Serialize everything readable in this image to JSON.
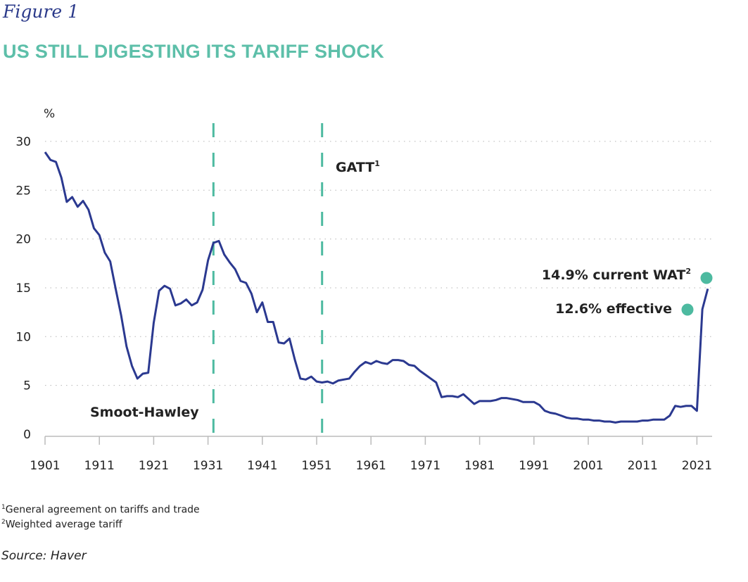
{
  "figure_label": "Figure 1",
  "chart_data": {
    "type": "line",
    "title": "US STILL DIGESTING ITS TARIFF SHOCK",
    "ylabel": "%",
    "xlabel": "",
    "ylim": [
      0,
      30
    ],
    "yticks": [
      "0",
      "5",
      "10",
      "15",
      "20",
      "25",
      "30"
    ],
    "xticks": [
      "1901",
      "1911",
      "1921",
      "1931",
      "1941",
      "1951",
      "1961",
      "1971",
      "1981",
      "1991",
      "2001",
      "2011",
      "2021"
    ],
    "grid": "horizontal dotted",
    "line_color": "#2b3990",
    "accent_color": "#4dbaa0",
    "series": [
      {
        "x": [
          1901,
          1902,
          1903,
          1904,
          1905,
          1906,
          1907,
          1908,
          1909,
          1910,
          1911,
          1912,
          1913,
          1914,
          1915,
          1916,
          1917,
          1918,
          1919,
          1920,
          1921,
          1922,
          1923,
          1924,
          1925,
          1926,
          1927,
          1928,
          1929,
          1930,
          1931,
          1932,
          1933,
          1934,
          1935,
          1936,
          1937,
          1938,
          1939,
          1940,
          1941,
          1942,
          1943,
          1944,
          1945,
          1946,
          1947,
          1948,
          1949,
          1950,
          1951,
          1952,
          1953,
          1954,
          1955,
          1956,
          1957,
          1958,
          1959,
          1960,
          1961,
          1962,
          1963,
          1964,
          1965,
          1966,
          1967,
          1968,
          1969,
          1970,
          1971,
          1972,
          1973,
          1974,
          1975,
          1976,
          1977,
          1978,
          1979,
          1980,
          1981,
          1982,
          1983,
          1984,
          1985,
          1986,
          1987,
          1988,
          1989,
          1990,
          1991,
          1992,
          1993,
          1994,
          1995,
          1996,
          1997,
          1998,
          1999,
          2000,
          2001,
          2002,
          2003,
          2004,
          2005,
          2006,
          2007,
          2008,
          2009,
          2010,
          2011,
          2012,
          2013,
          2014,
          2015,
          2016,
          2017,
          2018,
          2019,
          2020,
          2021,
          2022,
          2023
        ],
        "values": [
          28.9,
          28.1,
          27.9,
          26.3,
          23.8,
          24.3,
          23.3,
          23.9,
          23.0,
          21.1,
          20.4,
          18.6,
          17.7,
          14.9,
          12.2,
          9.0,
          7.0,
          5.7,
          6.2,
          6.3,
          11.4,
          14.7,
          15.2,
          14.9,
          13.2,
          13.4,
          13.8,
          13.2,
          13.5,
          14.8,
          17.8,
          19.6,
          19.8,
          18.4,
          17.6,
          16.9,
          15.7,
          15.5,
          14.4,
          12.5,
          13.5,
          11.5,
          11.5,
          9.4,
          9.3,
          9.8,
          7.6,
          5.7,
          5.6,
          5.9,
          5.4,
          5.3,
          5.4,
          5.2,
          5.5,
          5.6,
          5.7,
          6.4,
          7.0,
          7.4,
          7.2,
          7.5,
          7.3,
          7.2,
          7.6,
          7.6,
          7.5,
          7.1,
          7.0,
          6.5,
          6.1,
          5.7,
          5.3,
          3.8,
          3.9,
          3.9,
          3.8,
          4.1,
          3.6,
          3.1,
          3.4,
          3.4,
          3.4,
          3.5,
          3.7,
          3.7,
          3.6,
          3.5,
          3.3,
          3.3,
          3.3,
          3.0,
          2.4,
          2.2,
          2.1,
          1.9,
          1.7,
          1.6,
          1.6,
          1.5,
          1.5,
          1.4,
          1.4,
          1.3,
          1.3,
          1.2,
          1.3,
          1.3,
          1.3,
          1.3,
          1.4,
          1.4,
          1.5,
          1.5,
          1.5,
          1.9,
          2.9,
          2.8,
          2.9,
          2.9,
          2.4,
          12.8,
          14.9
        ]
      }
    ],
    "vlines": [
      {
        "x": 1932,
        "label": "Smoot-Hawley"
      },
      {
        "x": 1952,
        "label": "GATT",
        "sup": "1"
      }
    ],
    "annotations": [
      {
        "text": "14.9% current WAT",
        "sup": "2",
        "marker": "dot"
      },
      {
        "text": "12.6% effective",
        "marker": "dot"
      }
    ]
  },
  "footnotes": [
    {
      "sup": "1",
      "text": "General agreement on tariffs and trade"
    },
    {
      "sup": "2",
      "text": "Weighted average tariff"
    }
  ],
  "source": "Source: Haver"
}
